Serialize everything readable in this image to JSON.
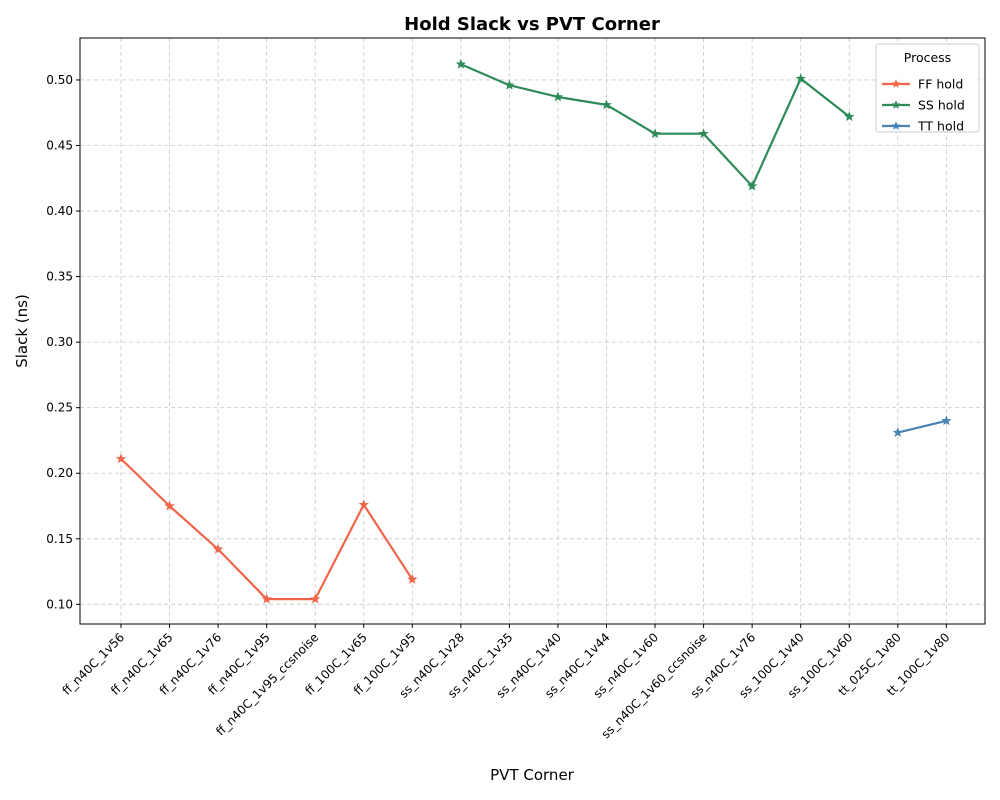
{
  "chart_data": {
    "type": "line",
    "title": "Hold Slack vs PVT Corner",
    "xlabel": "PVT Corner",
    "ylabel": "Slack (ns)",
    "ylim": [
      0.085,
      0.532
    ],
    "yticks": [
      0.1,
      0.15,
      0.2,
      0.25,
      0.3,
      0.35,
      0.4,
      0.45,
      0.5
    ],
    "ytick_labels": [
      "0.10",
      "0.15",
      "0.20",
      "0.25",
      "0.30",
      "0.35",
      "0.40",
      "0.45",
      "0.50"
    ],
    "grid": true,
    "marker": "star",
    "legend": {
      "title": "Process",
      "position": "top-right"
    },
    "categories": [
      "ff_n40C_1v56",
      "ff_n40C_1v65",
      "ff_n40C_1v76",
      "ff_n40C_1v95",
      "ff_n40C_1v95_ccsnoise",
      "ff_100C_1v65",
      "ff_100C_1v95",
      "ss_n40C_1v28",
      "ss_n40C_1v35",
      "ss_n40C_1v40",
      "ss_n40C_1v44",
      "ss_n40C_1v60",
      "ss_n40C_1v60_ccsnoise",
      "ss_n40C_1v76",
      "ss_100C_1v40",
      "ss_100C_1v60",
      "tt_025C_1v80",
      "tt_100C_1v80"
    ],
    "series": [
      {
        "name": "FF hold",
        "color": "#f0654a",
        "x": [
          "ff_n40C_1v56",
          "ff_n40C_1v65",
          "ff_n40C_1v76",
          "ff_n40C_1v95",
          "ff_n40C_1v95_ccsnoise",
          "ff_100C_1v65",
          "ff_100C_1v95"
        ],
        "values": [
          0.211,
          0.175,
          0.142,
          0.104,
          0.104,
          0.176,
          0.119
        ]
      },
      {
        "name": "SS hold",
        "color": "#2e8b57",
        "x": [
          "ss_n40C_1v28",
          "ss_n40C_1v35",
          "ss_n40C_1v40",
          "ss_n40C_1v44",
          "ss_n40C_1v60",
          "ss_n40C_1v60_ccsnoise",
          "ss_n40C_1v76",
          "ss_100C_1v40",
          "ss_100C_1v60"
        ],
        "values": [
          0.512,
          0.496,
          0.487,
          0.481,
          0.459,
          0.459,
          0.419,
          0.501,
          0.472
        ]
      },
      {
        "name": "TT hold",
        "color": "#4682b4",
        "x": [
          "tt_025C_1v80",
          "tt_100C_1v80"
        ],
        "values": [
          0.231,
          0.24
        ]
      }
    ]
  }
}
